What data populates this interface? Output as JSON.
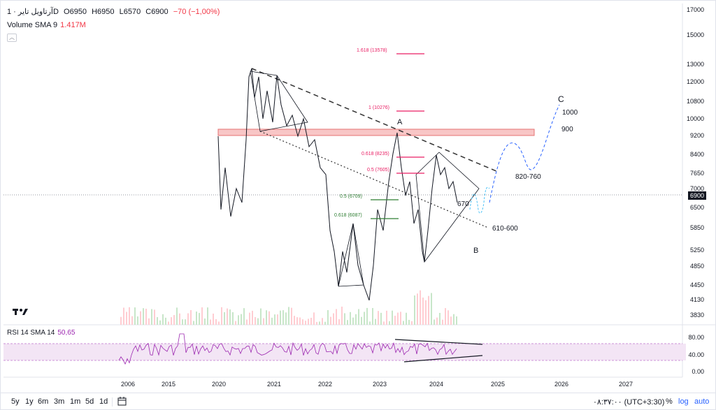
{
  "header": {
    "symbol": "آرتاویل تایر · 1D",
    "open": "O6950",
    "high": "H6950",
    "low": "L6570",
    "close": "C6900",
    "change": "−70 (−1,00%)"
  },
  "volume": {
    "label": "Volume SMA 9",
    "value": "1.417M"
  },
  "price_axis": [
    "17000",
    "15000",
    "13000",
    "12000",
    "10800",
    "10000",
    "9200",
    "8400",
    "7650",
    "7000",
    "6500",
    "5850",
    "5250",
    "4850",
    "4450",
    "4130",
    "3830"
  ],
  "current_price": "6900",
  "time_axis": [
    "2006",
    "2015",
    "2020",
    "2021",
    "2022",
    "2023",
    "2024",
    "2025",
    "2026",
    "2027"
  ],
  "annotations": {
    "fib_1618": "1.618 (13578)",
    "fib_1": "1 (10276)",
    "fib_0618_up": "0.618 (8235)",
    "fib_05_up": "0.5 (7605)",
    "fib_05_down": "0.5 (6709)",
    "fib_0618_down": "0.618 (6087)",
    "wave_a": "A",
    "wave_b": "B",
    "wave_c": "C",
    "level_1000": "1000",
    "level_900": "900",
    "level_820_760": "820-760",
    "level_670": "670",
    "level_610_600": "610-600"
  },
  "rsi": {
    "label": "RSI 14 SMA 14",
    "value": "50,65",
    "axis": [
      "80.00",
      "40.00",
      "0.00"
    ]
  },
  "bottom_bar": {
    "timeframes": [
      "5y",
      "1y",
      "6m",
      "3m",
      "1m",
      "5d",
      "1d"
    ],
    "clock": "۰۸:۳۷:۰۰ (UTC+3:30)",
    "percent": "%",
    "log": "log",
    "auto": "auto"
  },
  "colors": {
    "resistance_zone": "#f4a6a6",
    "fib_up": "#e91e63",
    "fib_down": "#2e7d32",
    "rsi_line": "#9c27b0",
    "rsi_band": "#e1bee7",
    "projection": "#2962ff"
  }
}
